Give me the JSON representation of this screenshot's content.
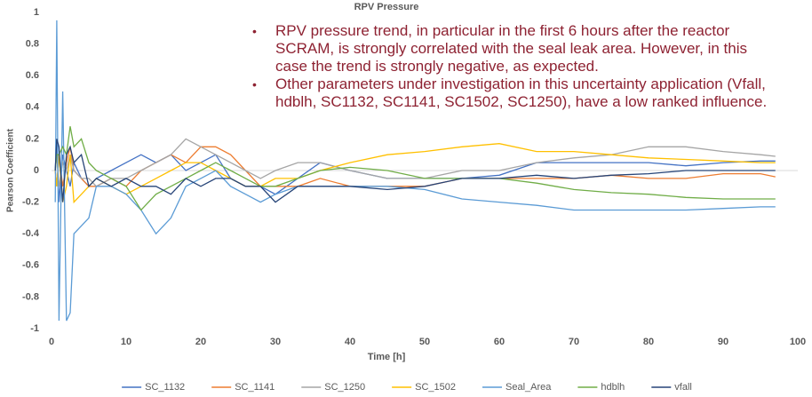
{
  "chart_data": {
    "type": "line",
    "title": "RPV Pressure",
    "xlabel": "Time [h]",
    "ylabel": "Pearson Coefficient",
    "annotations": [
      "RPV pressure trend, in particular in the first 6 hours after the reactor SCRAM, is strongly correlated with the seal leak area. However, in this case the trend is strongly negative, as expected.",
      "Other parameters under investigation in this uncertainty application (Vfall, hdblh, SC1132, SC1141, SC1502, SC1250), have a low ranked influence."
    ],
    "x": [
      0.5,
      0.7,
      1,
      1.5,
      2,
      2.5,
      3,
      4,
      5,
      6,
      8,
      10,
      12,
      14,
      16,
      18,
      20,
      22,
      24,
      26,
      28,
      30,
      33,
      36,
      40,
      45,
      50,
      55,
      60,
      65,
      70,
      75,
      80,
      85,
      90,
      95,
      97
    ],
    "xlim": [
      0,
      100
    ],
    "xticks": [
      0,
      10,
      20,
      30,
      40,
      50,
      60,
      70,
      80,
      90,
      100
    ],
    "ylim": [
      -1,
      1
    ],
    "yticks": [
      -1,
      -0.8,
      -0.6,
      -0.4,
      -0.2,
      0,
      0.2,
      0.4,
      0.6,
      0.8,
      1
    ],
    "grid": false,
    "legend": "bottom",
    "series": [
      {
        "name": "SC_1132",
        "color": "#4472c4",
        "values": [
          0,
          0.2,
          -0.2,
          0.1,
          0,
          -0.1,
          0.05,
          -0.05,
          -0.1,
          -0.05,
          0,
          0.05,
          0.1,
          0.05,
          0.1,
          0,
          0.05,
          0.1,
          -0.05,
          -0.1,
          -0.1,
          -0.15,
          -0.05,
          0.05,
          0,
          -0.05,
          -0.05,
          -0.05,
          -0.03,
          0.05,
          0.05,
          0.05,
          0.05,
          0.03,
          0.05,
          0.06,
          0.06
        ]
      },
      {
        "name": "SC_1141",
        "color": "#ed7d31",
        "values": [
          0,
          -0.1,
          0.1,
          -0.1,
          0.05,
          0.15,
          0,
          -0.05,
          -0.1,
          -0.1,
          -0.05,
          -0.1,
          0,
          0.05,
          0.1,
          0.05,
          0.15,
          0.15,
          0.1,
          0,
          -0.1,
          -0.1,
          -0.1,
          -0.05,
          -0.1,
          -0.1,
          -0.1,
          -0.05,
          -0.05,
          -0.05,
          -0.05,
          -0.03,
          -0.05,
          -0.05,
          -0.02,
          -0.02,
          -0.04
        ]
      },
      {
        "name": "SC_1250",
        "color": "#a5a5a5",
        "values": [
          0,
          0.1,
          -0.1,
          0.05,
          0,
          0.1,
          0,
          -0.05,
          -0.05,
          -0.1,
          -0.05,
          -0.05,
          0,
          0.05,
          0.1,
          0.2,
          0.15,
          0.1,
          0.05,
          0,
          -0.05,
          0,
          0.05,
          0.05,
          0,
          -0.05,
          -0.05,
          0,
          0,
          0.05,
          0.08,
          0.1,
          0.15,
          0.15,
          0.12,
          0.1,
          0.09
        ]
      },
      {
        "name": "SC_1502",
        "color": "#ffc000",
        "values": [
          0,
          -0.1,
          0.1,
          -0.2,
          -0.1,
          0.1,
          -0.2,
          -0.15,
          -0.1,
          -0.05,
          -0.1,
          -0.15,
          -0.1,
          -0.05,
          0,
          0.05,
          0.05,
          0,
          -0.05,
          -0.1,
          -0.1,
          -0.05,
          -0.05,
          0,
          0.05,
          0.1,
          0.12,
          0.15,
          0.17,
          0.12,
          0.12,
          0.1,
          0.08,
          0.07,
          0.06,
          0.05,
          0.05
        ]
      },
      {
        "name": "Seal_Area",
        "color": "#5b9bd5",
        "values": [
          -0.2,
          0.95,
          -0.95,
          0.5,
          -0.95,
          -0.9,
          -0.4,
          -0.35,
          -0.3,
          -0.1,
          -0.1,
          -0.15,
          -0.25,
          -0.4,
          -0.3,
          -0.1,
          -0.05,
          0,
          -0.1,
          -0.15,
          -0.2,
          -0.15,
          -0.1,
          -0.1,
          -0.1,
          -0.1,
          -0.12,
          -0.18,
          -0.2,
          -0.22,
          -0.25,
          -0.25,
          -0.25,
          -0.25,
          -0.24,
          -0.23,
          -0.23
        ]
      },
      {
        "name": "hdblh",
        "color": "#70ad47",
        "values": [
          0,
          0.1,
          0.1,
          0.15,
          0.1,
          0.28,
          0.15,
          0.2,
          0.05,
          0,
          -0.05,
          -0.1,
          -0.25,
          -0.15,
          -0.1,
          -0.05,
          0,
          0.05,
          0,
          -0.05,
          -0.1,
          -0.1,
          -0.05,
          0,
          0.02,
          0,
          -0.05,
          -0.05,
          -0.05,
          -0.08,
          -0.12,
          -0.14,
          -0.15,
          -0.17,
          -0.18,
          -0.18,
          -0.18
        ]
      },
      {
        "name": "vfall",
        "color": "#264478",
        "values": [
          0,
          0.2,
          0.15,
          -0.2,
          0.1,
          0.15,
          0.05,
          0.1,
          -0.1,
          -0.05,
          -0.1,
          -0.05,
          -0.1,
          -0.1,
          -0.15,
          -0.05,
          -0.1,
          -0.05,
          -0.05,
          -0.1,
          -0.1,
          -0.2,
          -0.1,
          -0.1,
          -0.1,
          -0.12,
          -0.1,
          -0.05,
          -0.05,
          -0.03,
          -0.05,
          -0.03,
          -0.02,
          0,
          0,
          0,
          0
        ]
      }
    ]
  }
}
